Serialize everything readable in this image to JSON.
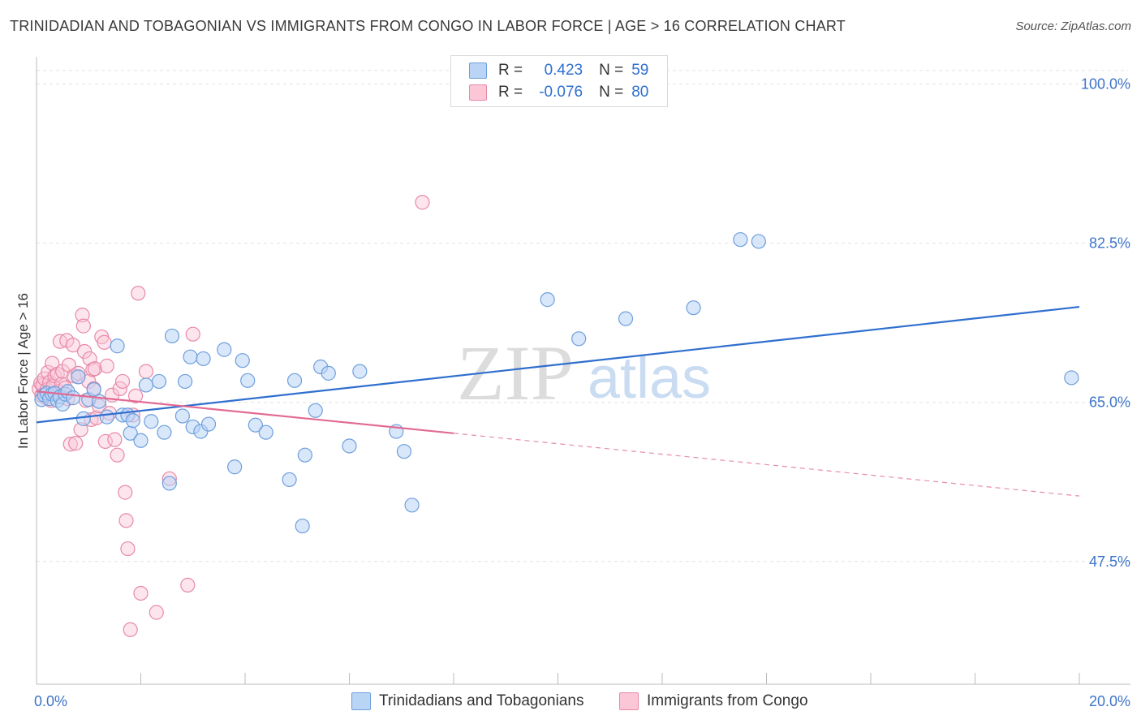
{
  "title": "TRINIDADIAN AND TOBAGONIAN VS IMMIGRANTS FROM CONGO IN LABOR FORCE | AGE > 16 CORRELATION CHART",
  "source": "Source: ZipAtlas.com",
  "watermark": {
    "zip": "ZIP",
    "atlas": "atlas"
  },
  "stats": [
    {
      "r_label": "R =",
      "r_value": "0.423",
      "n_label": "N =",
      "n_value": "59",
      "color": "#6e9fdc"
    },
    {
      "r_label": "R =",
      "r_value": "-0.076",
      "n_label": "N =",
      "n_value": "80",
      "color": "#e78aa8"
    }
  ],
  "legend": [
    {
      "label": "Trinidadians and Tobagonians",
      "color": "#b9d4f5"
    },
    {
      "label": "Immigrants from Congo",
      "color": "#fbc6d6"
    }
  ],
  "chart_data": {
    "type": "scatter",
    "title": "TRINIDADIAN AND TOBAGONIAN VS IMMIGRANTS FROM CONGO IN LABOR FORCE | AGE > 16 CORRELATION CHART",
    "xlabel": "",
    "ylabel": "In Labor Force | Age > 16",
    "xlim": [
      0,
      20
    ],
    "ylim": [
      34,
      103
    ],
    "x_tick_labels": [
      {
        "value": 0,
        "label": "0.0%"
      },
      {
        "value": 20,
        "label": "20.0%"
      }
    ],
    "y_tick_labels": [
      {
        "value": 100,
        "label": "100.0%"
      },
      {
        "value": 82.5,
        "label": "82.5%"
      },
      {
        "value": 65,
        "label": "65.0%"
      },
      {
        "value": 47.5,
        "label": "47.5%"
      }
    ],
    "grid": true,
    "legend_position": "bottom-center",
    "series": [
      {
        "name": "Trinidadians and Tobagonians",
        "color": "#6e9fdc",
        "trend": {
          "x0": 0,
          "y0": 62.8,
          "x1": 20,
          "y1": 75.5
        },
        "points": [
          [
            0.1,
            65.3
          ],
          [
            0.15,
            65.8
          ],
          [
            0.2,
            66.0
          ],
          [
            0.25,
            65.4
          ],
          [
            0.3,
            65.9
          ],
          [
            0.35,
            66.0
          ],
          [
            0.4,
            65.2
          ],
          [
            0.45,
            65.6
          ],
          [
            0.5,
            64.8
          ],
          [
            0.55,
            65.9
          ],
          [
            0.6,
            66.2
          ],
          [
            0.7,
            65.5
          ],
          [
            0.8,
            67.8
          ],
          [
            0.9,
            63.2
          ],
          [
            1.0,
            65.3
          ],
          [
            1.1,
            66.4
          ],
          [
            1.2,
            65.1
          ],
          [
            1.35,
            63.4
          ],
          [
            1.55,
            71.2
          ],
          [
            1.65,
            63.6
          ],
          [
            1.75,
            63.6
          ],
          [
            1.8,
            61.6
          ],
          [
            1.85,
            63.0
          ],
          [
            2.0,
            60.8
          ],
          [
            2.1,
            66.9
          ],
          [
            2.2,
            62.9
          ],
          [
            2.35,
            67.3
          ],
          [
            2.45,
            61.7
          ],
          [
            2.55,
            56.1
          ],
          [
            2.6,
            72.3
          ],
          [
            2.8,
            63.5
          ],
          [
            2.85,
            67.3
          ],
          [
            2.95,
            70.0
          ],
          [
            3.0,
            62.3
          ],
          [
            3.15,
            61.8
          ],
          [
            3.2,
            69.8
          ],
          [
            3.3,
            62.6
          ],
          [
            3.6,
            70.8
          ],
          [
            3.8,
            57.9
          ],
          [
            3.95,
            69.6
          ],
          [
            4.05,
            67.4
          ],
          [
            4.2,
            62.5
          ],
          [
            4.4,
            61.7
          ],
          [
            4.85,
            56.5
          ],
          [
            4.95,
            67.4
          ],
          [
            5.1,
            51.4
          ],
          [
            5.15,
            59.2
          ],
          [
            5.35,
            64.1
          ],
          [
            5.45,
            68.9
          ],
          [
            5.6,
            68.2
          ],
          [
            6.0,
            60.2
          ],
          [
            6.2,
            68.4
          ],
          [
            6.9,
            61.8
          ],
          [
            7.05,
            59.6
          ],
          [
            7.2,
            53.7
          ],
          [
            9.8,
            76.3
          ],
          [
            10.4,
            72.0
          ],
          [
            11.3,
            74.2
          ],
          [
            12.6,
            75.4
          ],
          [
            13.5,
            82.9
          ],
          [
            13.85,
            82.7
          ],
          [
            19.85,
            67.7
          ]
        ]
      },
      {
        "name": "Immigrants from Congo",
        "color": "#e78aa8",
        "trend": {
          "x0": 0,
          "y0": 66.2,
          "x1": 8.0,
          "y1": 61.6
        },
        "trend_extension": {
          "x0": 8.0,
          "y0": 61.6,
          "x1": 20,
          "y1": 54.7
        },
        "points": [
          [
            0.05,
            66.5
          ],
          [
            0.08,
            67.1
          ],
          [
            0.1,
            65.8
          ],
          [
            0.12,
            66.9
          ],
          [
            0.15,
            67.6
          ],
          [
            0.18,
            65.5
          ],
          [
            0.2,
            66.4
          ],
          [
            0.22,
            68.3
          ],
          [
            0.25,
            67.2
          ],
          [
            0.28,
            65.2
          ],
          [
            0.3,
            69.3
          ],
          [
            0.32,
            66.8
          ],
          [
            0.35,
            67.9
          ],
          [
            0.38,
            65.9
          ],
          [
            0.4,
            68.1
          ],
          [
            0.42,
            66.2
          ],
          [
            0.45,
            71.7
          ],
          [
            0.48,
            67.0
          ],
          [
            0.5,
            68.4
          ],
          [
            0.55,
            66.6
          ],
          [
            0.58,
            71.8
          ],
          [
            0.6,
            65.4
          ],
          [
            0.62,
            69.1
          ],
          [
            0.65,
            60.4
          ],
          [
            0.7,
            71.3
          ],
          [
            0.72,
            67.9
          ],
          [
            0.75,
            60.5
          ],
          [
            0.8,
            68.2
          ],
          [
            0.85,
            62.0
          ],
          [
            0.88,
            74.6
          ],
          [
            0.9,
            73.4
          ],
          [
            0.92,
            70.6
          ],
          [
            0.95,
            65.2
          ],
          [
            1.0,
            67.3
          ],
          [
            1.02,
            69.8
          ],
          [
            1.05,
            63.1
          ],
          [
            1.08,
            68.6
          ],
          [
            1.1,
            66.5
          ],
          [
            1.12,
            68.7
          ],
          [
            1.15,
            63.3
          ],
          [
            1.2,
            64.6
          ],
          [
            1.25,
            72.2
          ],
          [
            1.3,
            71.6
          ],
          [
            1.32,
            60.7
          ],
          [
            1.35,
            69.0
          ],
          [
            1.4,
            63.8
          ],
          [
            1.45,
            65.8
          ],
          [
            1.5,
            60.9
          ],
          [
            1.55,
            59.2
          ],
          [
            1.6,
            66.5
          ],
          [
            1.65,
            67.3
          ],
          [
            1.7,
            55.1
          ],
          [
            1.72,
            52.0
          ],
          [
            1.75,
            48.9
          ],
          [
            1.8,
            40.0
          ],
          [
            1.85,
            63.6
          ],
          [
            1.9,
            65.7
          ],
          [
            1.95,
            77.0
          ],
          [
            2.0,
            44.0
          ],
          [
            2.1,
            68.4
          ],
          [
            2.3,
            41.9
          ],
          [
            2.55,
            56.6
          ],
          [
            2.9,
            44.9
          ],
          [
            3.0,
            72.5
          ],
          [
            7.4,
            87.0
          ]
        ]
      }
    ]
  }
}
